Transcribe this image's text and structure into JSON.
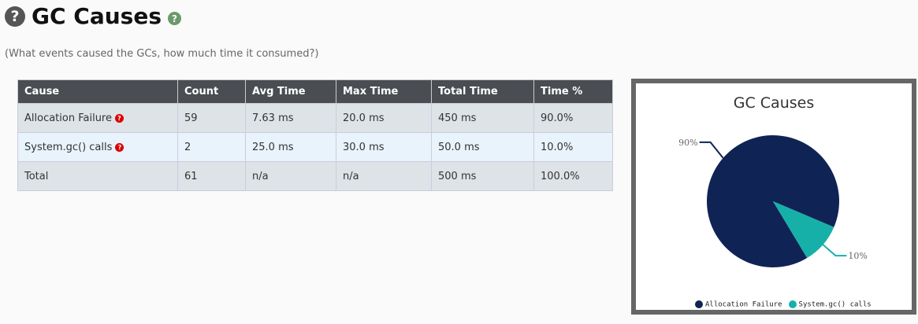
{
  "header": {
    "title": "GC Causes",
    "subtitle": "(What events caused the GCs, how much time it consumed?)",
    "help_icon": "question-circle-icon"
  },
  "table": {
    "columns": [
      "Cause",
      "Count",
      "Avg Time",
      "Max Time",
      "Total Time",
      "Time %"
    ],
    "rows": [
      {
        "cause": "Allocation Failure",
        "help": true,
        "count": "59",
        "avg": "7.63 ms",
        "max": "20.0 ms",
        "total": "450 ms",
        "pct": "90.0%"
      },
      {
        "cause": "System.gc() calls",
        "help": true,
        "count": "2",
        "avg": "25.0 ms",
        "max": "30.0 ms",
        "total": "50.0 ms",
        "pct": "10.0%"
      },
      {
        "cause": "Total",
        "help": false,
        "count": "61",
        "avg": "n/a",
        "max": "n/a",
        "total": "500 ms",
        "pct": "100.0%"
      }
    ]
  },
  "chart_data": {
    "type": "pie",
    "title": "GC Causes",
    "legend_position": "bottom",
    "slices": [
      {
        "name": "Allocation Failure",
        "value": 90,
        "label": "90%",
        "color": "#0f2454"
      },
      {
        "name": "System.gc() calls",
        "value": 10,
        "label": "10%",
        "color": "#17b0a8"
      }
    ]
  }
}
